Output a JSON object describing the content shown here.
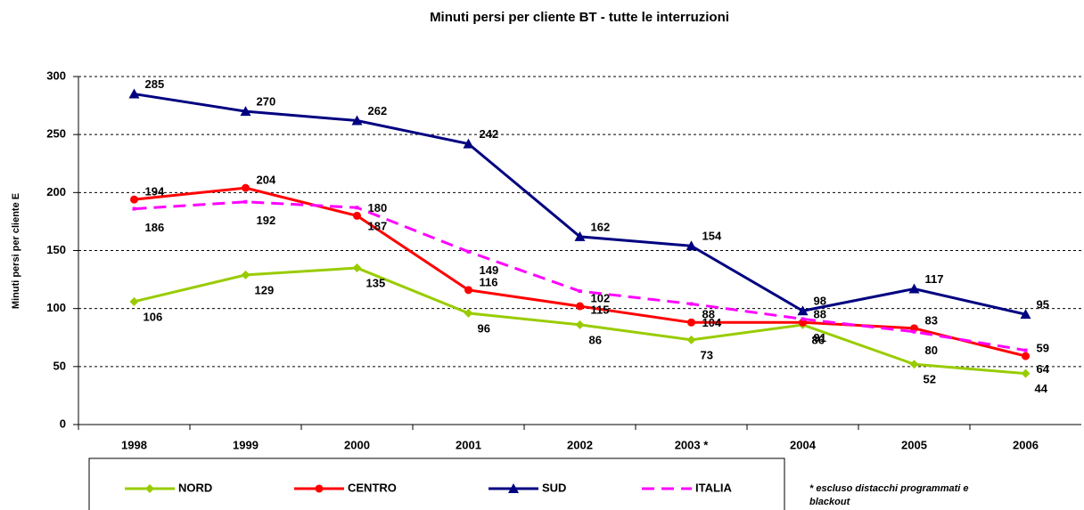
{
  "chart_data": {
    "type": "line",
    "title": "Minuti persi per cliente BT - tutte le interruzioni",
    "y_label": "Minuti persi per cliente E",
    "categories": [
      "1998",
      "1999",
      "2000",
      "2001",
      "2002",
      "2003 *",
      "2004",
      "2005",
      "2006"
    ],
    "series": [
      {
        "name": "NORD",
        "color": "#99cc00",
        "marker": "diamond",
        "dashed": false,
        "values": [
          106,
          129,
          135,
          96,
          86,
          73,
          86,
          52,
          44
        ]
      },
      {
        "name": "CENTRO",
        "color": "#ff0000",
        "marker": "circle",
        "dashed": false,
        "values": [
          194,
          204,
          180,
          116,
          102,
          88,
          88,
          83,
          59
        ]
      },
      {
        "name": "SUD",
        "color": "#000080",
        "marker": "triangle",
        "dashed": false,
        "values": [
          285,
          270,
          262,
          242,
          162,
          154,
          98,
          117,
          95
        ]
      },
      {
        "name": "ITALIA",
        "color": "#ff00ff",
        "marker": "none",
        "dashed": true,
        "values": [
          186,
          192,
          187,
          149,
          115,
          104,
          91,
          80,
          64
        ]
      }
    ],
    "ylim": [
      0,
      300
    ],
    "yticks": [
      0,
      50,
      100,
      150,
      200,
      250,
      300
    ],
    "grid": true,
    "legend": "bottom",
    "footnote": "* escluso distacchi programmati e blackout"
  }
}
